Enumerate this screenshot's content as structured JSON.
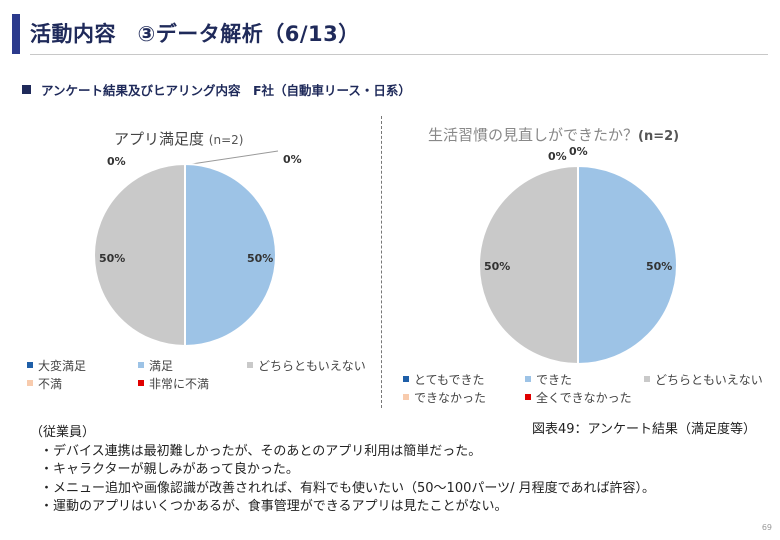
{
  "title": "活動内容　③データ解析（6/13）",
  "subtitle": "アンケート結果及びヒアリング内容　F社（自動車リース・日系）",
  "colors": {
    "accent": "#2b3a8c",
    "blue": "#9dc3e6",
    "gray": "#c9c9c9",
    "dark_blue": "#1f5fa8",
    "peach": "#f8cbad",
    "red": "#e00000"
  },
  "chart_data": [
    {
      "type": "pie",
      "title": "アプリ満足度",
      "title_suffix": "(n=2)",
      "slices": [
        {
          "label": "大変満足",
          "value": 0,
          "color": "#1f5fa8"
        },
        {
          "label": "満足",
          "value": 50,
          "color": "#9dc3e6"
        },
        {
          "label": "どちらともいえない",
          "value": 50,
          "color": "#c9c9c9"
        },
        {
          "label": "不満",
          "value": 0,
          "color": "#f8cbad"
        },
        {
          "label": "非常に不満",
          "value": 0,
          "color": "#e00000"
        }
      ],
      "data_labels": [
        "0%",
        "0%",
        "50%",
        "50%"
      ],
      "legend": "bottom"
    },
    {
      "type": "pie",
      "title": "生活習慣の見直しができたか？",
      "title_suffix": "(n=2)",
      "slices": [
        {
          "label": "とてもできた",
          "value": 0,
          "color": "#1f5fa8"
        },
        {
          "label": "できた",
          "value": 50,
          "color": "#9dc3e6"
        },
        {
          "label": "どちらともいえない",
          "value": 50,
          "color": "#c9c9c9"
        },
        {
          "label": "できなかった",
          "value": 0,
          "color": "#f8cbad"
        },
        {
          "label": "全くできなかった",
          "value": 0,
          "color": "#e00000"
        }
      ],
      "data_labels": [
        "0%",
        "0%",
        "50%",
        "50%"
      ],
      "legend": "bottom"
    }
  ],
  "caption": "図表49：アンケート結果（満足度等）",
  "comments": {
    "heading": "（従業員）",
    "lines": [
      "・デバイス連携は最初難しかったが、そのあとのアプリ利用は簡単だった。",
      "・キャラクターが親しみがあって良かった。",
      "・メニュー追加や画像認識が改善されれば、有料でも使いたい（50～100パーツ/ 月程度であれば許容）。",
      "・運動のアプリはいくつかあるが、食事管理ができるアプリは見たことがない。"
    ]
  },
  "page_number": "69"
}
